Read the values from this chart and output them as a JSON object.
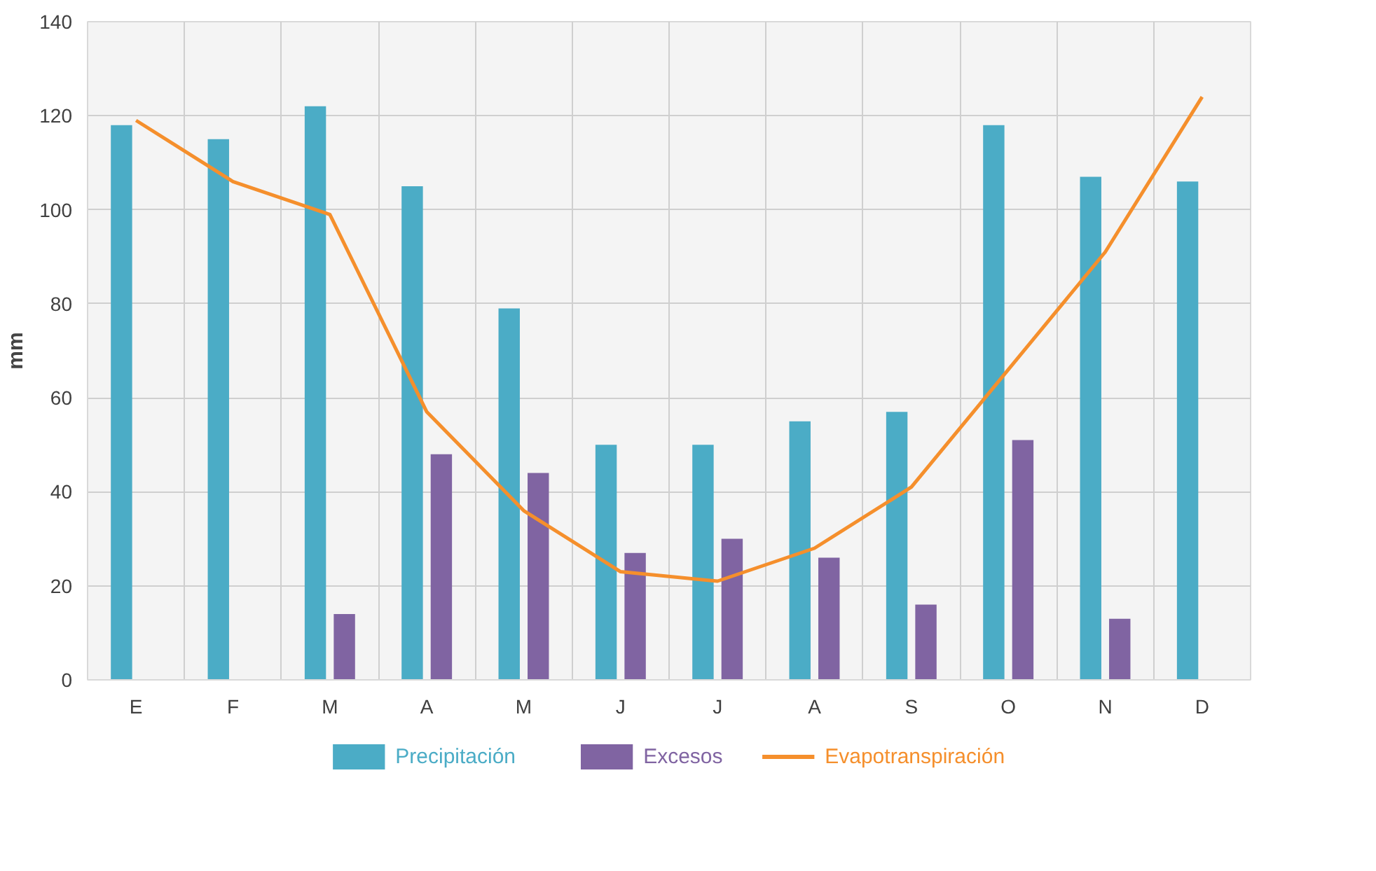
{
  "chart_data": {
    "type": "bar",
    "ylabel": "mm",
    "categories": [
      "E",
      "F",
      "M",
      "A",
      "M",
      "J",
      "J",
      "A",
      "S",
      "O",
      "N",
      "D"
    ],
    "ylim": [
      0,
      140
    ],
    "yticks": [
      0,
      20,
      40,
      60,
      80,
      100,
      120,
      140
    ],
    "grid": true,
    "legend": "bottom",
    "series": [
      {
        "name": "Precipitación",
        "color": "#4bacc6",
        "values": [
          118,
          115,
          122,
          105,
          79,
          50,
          50,
          55,
          57,
          118,
          107,
          106
        ]
      },
      {
        "name": "Excesos",
        "color": "#8064a2",
        "values": [
          null,
          null,
          14,
          48,
          44,
          27,
          30,
          26,
          16,
          51,
          13,
          null
        ]
      },
      {
        "name": "Evapotranspiración",
        "type": "line",
        "color": "#f58f2c",
        "values": [
          119,
          106,
          99,
          57,
          36,
          23,
          21,
          28,
          41,
          66,
          91,
          124
        ]
      }
    ]
  }
}
